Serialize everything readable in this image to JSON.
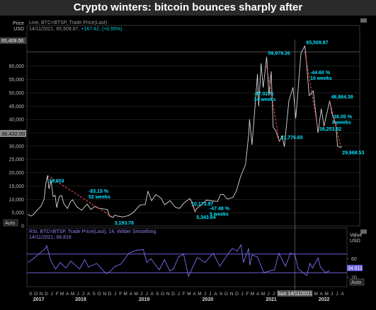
{
  "title": "Crypto winters: bitcoin bounces sharply after",
  "price_panel": {
    "axis_title_line1": "Price",
    "axis_title_line2": "USD",
    "legend_line1": "Line, BTC=BTSP, Trade Price(Last)",
    "legend_line2_prefix": "14/11/2021, 65,509.87,",
    "legend_line2_change": "+167.42, (+0.55%)",
    "top_value_tag": "65,409.06",
    "current_value_tag": "36,432.00",
    "auto_button": "Auto"
  },
  "rsi_panel": {
    "legend_line1": "RSI, BTC=BTSP, Trade Price(Last), 14, Wilder Smoothing",
    "legend_line2": "14/11/2021, 68.816",
    "axis_title_line1": "Value",
    "axis_title_line2": "USD",
    "value_tag": "34.611",
    "auto_button": "Auto"
  },
  "cursor_label": "Sun 14/11/2021",
  "colors": {
    "price_line": "#d8d8d8",
    "annotation": "#00e5ff",
    "trend": "#ff4a4a",
    "rsi_line": "#7b6ff2",
    "rsi_band": "#6a5fd8",
    "grid": "#2b2b2b"
  },
  "chart_data": [
    {
      "type": "line",
      "series": [
        {
          "values": [
            [
              "2017-09-01",
              4400
            ],
            [
              "2017-09-15",
              3700
            ],
            [
              "2017-10-01",
              4300
            ],
            [
              "2017-10-20",
              5900
            ],
            [
              "2017-11-10",
              7300
            ],
            [
              "2017-11-28",
              10000
            ],
            [
              "2017-12-08",
              16000
            ],
            [
              "2017-12-17",
              18953
            ],
            [
              "2017-12-25",
              14000
            ],
            [
              "2018-01-06",
              17000
            ],
            [
              "2018-01-17",
              11000
            ],
            [
              "2018-01-28",
              11500
            ],
            [
              "2018-02-06",
              6900
            ],
            [
              "2018-02-20",
              11100
            ],
            [
              "2018-03-05",
              11400
            ],
            [
              "2018-03-18",
              8300
            ],
            [
              "2018-04-06",
              6600
            ],
            [
              "2018-04-25",
              9300
            ],
            [
              "2018-05-05",
              9800
            ],
            [
              "2018-05-28",
              7200
            ],
            [
              "2018-06-24",
              5900
            ],
            [
              "2018-07-24",
              8200
            ],
            [
              "2018-08-14",
              6200
            ],
            [
              "2018-09-05",
              7300
            ],
            [
              "2018-09-30",
              6600
            ],
            [
              "2018-10-31",
              6300
            ],
            [
              "2018-11-14",
              6200
            ],
            [
              "2018-11-24",
              3800
            ],
            [
              "2018-12-15",
              3193.78
            ],
            [
              "2018-12-24",
              4100
            ],
            [
              "2019-01-10",
              3700
            ],
            [
              "2019-02-07",
              3400
            ],
            [
              "2019-03-10",
              3900
            ],
            [
              "2019-04-05",
              5000
            ],
            [
              "2019-05-14",
              7900
            ],
            [
              "2019-06-10",
              8000
            ],
            [
              "2019-06-26",
              13000
            ],
            [
              "2019-07-16",
              9500
            ],
            [
              "2019-08-08",
              11800
            ],
            [
              "2019-09-06",
              10500
            ],
            [
              "2019-09-26",
              8000
            ],
            [
              "2019-10-26",
              9500
            ],
            [
              "2019-11-25",
              7000
            ],
            [
              "2019-12-17",
              6600
            ],
            [
              "2020-01-14",
              8800
            ],
            [
              "2020-02-13",
              10300
            ],
            [
              "2020-02-28",
              8600
            ],
            [
              "2020-03-12",
              5343.64
            ],
            [
              "2020-03-20",
              6400
            ],
            [
              "2020-04-30",
              8700
            ],
            [
              "2020-05-15",
              9700
            ],
            [
              "2020-06-15",
              9400
            ],
            [
              "2020-07-15",
              9200
            ],
            [
              "2020-08-01",
              11800
            ],
            [
              "2020-08-15",
              11900
            ],
            [
              "2020-09-08",
              10100
            ],
            [
              "2020-10-08",
              10700
            ],
            [
              "2020-10-28",
              13300
            ],
            [
              "2020-11-20",
              18700
            ],
            [
              "2020-12-17",
              23000
            ],
            [
              "2021-01-03",
              34000
            ],
            [
              "2021-01-08",
              40000
            ],
            [
              "2021-01-22",
              30500
            ],
            [
              "2021-02-09",
              46000
            ],
            [
              "2021-02-21",
              57000
            ],
            [
              "2021-02-28",
              45000
            ],
            [
              "2021-03-13",
              61000
            ],
            [
              "2021-03-25",
              52000
            ],
            [
              "2021-04-13",
              63500
            ],
            [
              "2021-04-25",
              49000
            ],
            [
              "2021-05-08",
              58000
            ],
            [
              "2021-05-19",
              37000
            ],
            [
              "2021-06-01",
              36000
            ],
            [
              "2021-06-22",
              31776.65
            ],
            [
              "2021-07-08",
              33800
            ],
            [
              "2021-07-20",
              29800
            ],
            [
              "2021-08-14",
              47000
            ],
            [
              "2021-09-06",
              52000
            ],
            [
              "2021-09-21",
              40500
            ],
            [
              "2021-10-20",
              65000
            ],
            [
              "2021-11-10",
              67500
            ],
            [
              "2021-11-14",
              65509.87
            ],
            [
              "2021-12-04",
              49000
            ],
            [
              "2021-12-27",
              50700
            ],
            [
              "2022-01-22",
              35000
            ],
            [
              "2022-02-09",
              44000
            ],
            [
              "2022-02-24",
              37500
            ],
            [
              "2022-03-28",
              47000
            ],
            [
              "2022-04-10",
              42000
            ],
            [
              "2022-05-01",
              38500
            ],
            [
              "2022-05-10",
              30000
            ],
            [
              "2022-05-28",
              29500
            ],
            [
              "2022-06-02",
              29800
            ]
          ]
        }
      ],
      "ylim": [
        0,
        70000
      ],
      "y_ticks": [
        0,
        5000,
        10000,
        15000,
        20000,
        25000,
        30000,
        35000,
        40000,
        45000,
        50000,
        55000,
        60000
      ],
      "y_tick_labels": [
        "0",
        "5,000",
        "10,000",
        "15,000",
        "20,000",
        "25,000",
        "30,000",
        "35,000",
        "40,000",
        "45,000",
        "50,000",
        "55,000",
        "60,000"
      ],
      "xlim": [
        "2017-08-25",
        "2022-09-10"
      ],
      "grid": true,
      "annotations": [
        {
          "x": "2017-12-17",
          "y": 18953,
          "text": [
            "18,953"
          ]
        },
        {
          "x": "2018-12-15",
          "y": 3193.78,
          "text": [
            "3,193.78"
          ]
        },
        {
          "x": "2018-08-01",
          "y": 12500,
          "text": [
            "-83.15 %",
            "52 weeks"
          ]
        },
        {
          "x": "2020-03-12",
          "y": 5343.64,
          "text": [
            "5,343.64"
          ]
        },
        {
          "x": "2020-02-13",
          "y": 10300,
          "text": [
            "10,173.97"
          ]
        },
        {
          "x": "2020-06-01",
          "y": 6000,
          "text": [
            "-47.48 %",
            "5 weeks"
          ]
        },
        {
          "x": "2021-04-13",
          "y": 63500,
          "text": [
            "59,979.26"
          ]
        },
        {
          "x": "2021-06-22",
          "y": 31776.65,
          "text": [
            "31,776.65"
          ]
        },
        {
          "x": "2021-02-01",
          "y": 49000,
          "text": [
            "-47.02 %",
            "14 weeks"
          ]
        },
        {
          "x": "2021-11-10",
          "y": 67500,
          "text": [
            "65,509.87"
          ]
        },
        {
          "x": "2022-01-22",
          "y": 35000,
          "text": [
            "36,253.62"
          ]
        },
        {
          "x": "2021-12-10",
          "y": 57000,
          "text": [
            "-44.60 %",
            "10 weeks"
          ]
        },
        {
          "x": "2022-03-28",
          "y": 47000,
          "text": [
            "46,864.39"
          ]
        },
        {
          "x": "2022-05-28",
          "y": 29500,
          "text": [
            "29,968.53"
          ]
        },
        {
          "x": "2022-04-10",
          "y": 40500,
          "text": [
            "-36.05 %",
            "8 weeks"
          ]
        }
      ],
      "trend_lines": [
        {
          "from": [
            "2017-12-17",
            18953
          ],
          "to": [
            "2018-12-15",
            3193.78
          ]
        },
        {
          "from": [
            "2020-02-13",
            10173.97
          ],
          "to": [
            "2020-03-12",
            5343.64
          ]
        },
        {
          "from": [
            "2021-04-13",
            59979.26
          ],
          "to": [
            "2021-06-22",
            31776.65
          ]
        },
        {
          "from": [
            "2021-11-10",
            65509.87
          ],
          "to": [
            "2022-01-22",
            36253.62
          ]
        },
        {
          "from": [
            "2022-03-28",
            46864.39
          ],
          "to": [
            "2022-05-28",
            29968.53
          ]
        }
      ]
    },
    {
      "type": "line",
      "series": [
        {
          "values": [
            [
              "2017-09-01",
              52
            ],
            [
              "2017-10-01",
              60
            ],
            [
              "2017-11-01",
              70
            ],
            [
              "2017-12-10",
              82
            ],
            [
              "2017-12-17",
              88
            ],
            [
              "2018-01-10",
              55
            ],
            [
              "2018-02-06",
              38
            ],
            [
              "2018-03-05",
              52
            ],
            [
              "2018-04-06",
              40
            ],
            [
              "2018-05-05",
              55
            ],
            [
              "2018-06-24",
              38
            ],
            [
              "2018-07-24",
              58
            ],
            [
              "2018-08-14",
              42
            ],
            [
              "2018-09-30",
              50
            ],
            [
              "2018-11-24",
              28
            ],
            [
              "2018-12-15",
              32
            ],
            [
              "2019-01-15",
              44
            ],
            [
              "2019-02-15",
              48
            ],
            [
              "2019-04-05",
              72
            ],
            [
              "2019-05-14",
              78
            ],
            [
              "2019-06-26",
              80
            ],
            [
              "2019-07-16",
              52
            ],
            [
              "2019-08-08",
              60
            ],
            [
              "2019-09-26",
              36
            ],
            [
              "2019-10-26",
              58
            ],
            [
              "2019-11-25",
              34
            ],
            [
              "2019-12-17",
              38
            ],
            [
              "2020-01-14",
              64
            ],
            [
              "2020-02-13",
              70
            ],
            [
              "2020-03-12",
              22
            ],
            [
              "2020-04-30",
              62
            ],
            [
              "2020-05-15",
              60
            ],
            [
              "2020-06-15",
              52
            ],
            [
              "2020-08-01",
              72
            ],
            [
              "2020-09-08",
              44
            ],
            [
              "2020-10-28",
              72
            ],
            [
              "2020-11-20",
              82
            ],
            [
              "2020-12-17",
              76
            ],
            [
              "2021-01-08",
              90
            ],
            [
              "2021-01-22",
              52
            ],
            [
              "2021-02-21",
              82
            ],
            [
              "2021-02-28",
              46
            ],
            [
              "2021-03-13",
              68
            ],
            [
              "2021-04-13",
              64
            ],
            [
              "2021-05-19",
              30
            ],
            [
              "2021-06-22",
              34
            ],
            [
              "2021-07-20",
              36
            ],
            [
              "2021-08-14",
              72
            ],
            [
              "2021-09-21",
              44
            ],
            [
              "2021-10-20",
              72
            ],
            [
              "2021-11-14",
              68.816
            ],
            [
              "2021-12-04",
              38
            ],
            [
              "2022-01-22",
              24
            ],
            [
              "2022-02-09",
              50
            ],
            [
              "2022-02-24",
              40
            ],
            [
              "2022-03-28",
              62
            ],
            [
              "2022-04-10",
              42
            ],
            [
              "2022-05-10",
              30
            ],
            [
              "2022-06-02",
              34.611
            ]
          ]
        }
      ],
      "ylim": [
        0,
        100
      ],
      "y_ticks": [
        20,
        40,
        60
      ],
      "y_tick_labels": [
        "20",
        "40",
        "60"
      ],
      "bands": [
        30,
        70
      ],
      "xlim": [
        "2017-08-25",
        "2022-09-10"
      ]
    }
  ],
  "x_axis": {
    "months": [
      "S",
      "O",
      "N",
      "D",
      "J",
      "F",
      "M",
      "A",
      "M",
      "J",
      "J",
      "A",
      "S",
      "O",
      "N",
      "D",
      "J",
      "F",
      "M",
      "A",
      "M",
      "J",
      "J",
      "A",
      "S",
      "O",
      "N",
      "D",
      "J",
      "F",
      "M",
      "A",
      "M",
      "J",
      "J",
      "A",
      "S",
      "O",
      "N",
      "D",
      "J",
      "F",
      "M",
      "A",
      "M",
      "J",
      "J",
      "A",
      "S",
      "O",
      "N",
      "D",
      "J",
      "F",
      "M",
      "A",
      "M",
      "J",
      "J",
      "A"
    ],
    "years": [
      {
        "label": "2017",
        "date": "2017-11-01"
      },
      {
        "label": "2018",
        "date": "2018-07-01"
      },
      {
        "label": "2019",
        "date": "2019-07-01"
      },
      {
        "label": "2020",
        "date": "2020-07-01"
      },
      {
        "label": "2021",
        "date": "2021-07-01"
      },
      {
        "label": "2022",
        "date": "2022-05-01"
      }
    ]
  }
}
